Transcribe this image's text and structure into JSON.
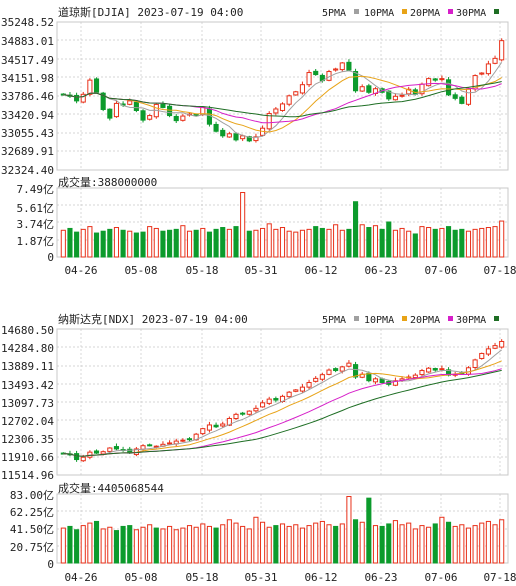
{
  "ma_labels": [
    "5PMA",
    "10PMA",
    "20PMA",
    "30PMA"
  ],
  "colors": {
    "up": "#e8311a",
    "down": "#0c9b2c",
    "ma5": "#a0a0a0",
    "ma10": "#d4d4d4",
    "ma20": "#e8a317",
    "ma30": "#d61fc9",
    "ma60": "#1e6e24",
    "grid": "#c8c8c8",
    "text": "#222222"
  },
  "chart_data": [
    {
      "type": "candlestick",
      "title": "道琼斯[DJIA] 2023-07-19 04:00",
      "y_ticks": [
        "35248.52",
        "34883.01",
        "34517.49",
        "34151.98",
        "33786.46",
        "33420.94",
        "33055.43",
        "32689.91",
        "32324.40"
      ],
      "ylim": [
        32324.4,
        35248.52
      ],
      "x_ticks": [
        "04-26",
        "05-08",
        "05-18",
        "05-31",
        "06-12",
        "06-23",
        "07-06",
        "07-18"
      ],
      "volume_label": "成交量:388000000",
      "volume_ticks": [
        "7.49亿",
        "5.61亿",
        "3.74亿",
        "1.87亿",
        "0"
      ],
      "volume_max": 7.49,
      "closes": [
        33810,
        33780,
        33690,
        33820,
        34100,
        33860,
        33520,
        33350,
        33640,
        33610,
        33690,
        33500,
        33310,
        33400,
        33620,
        33560,
        33400,
        33300,
        33390,
        33430,
        33410,
        33560,
        33230,
        33090,
        33000,
        33040,
        32920,
        33000,
        32900,
        32980,
        33150,
        33440,
        33530,
        33630,
        33790,
        33870,
        34010,
        34250,
        34210,
        34090,
        34270,
        34320,
        34440,
        34300,
        33890,
        33970,
        33860,
        33930,
        33860,
        33730,
        33780,
        33800,
        33920,
        33820,
        34020,
        34130,
        34100,
        34130,
        33810,
        33740,
        33640,
        33920,
        34190,
        34240,
        34420,
        34530,
        34880
      ],
      "volumes": [
        2.9,
        3.1,
        2.7,
        3.0,
        3.3,
        2.6,
        2.8,
        3.0,
        3.2,
        2.9,
        2.8,
        2.6,
        2.7,
        3.3,
        3.1,
        2.8,
        2.9,
        3.0,
        3.4,
        2.8,
        2.9,
        3.1,
        2.7,
        3.0,
        3.2,
        3.0,
        3.3,
        7.0,
        2.8,
        2.9,
        3.1,
        3.6,
        3.0,
        3.2,
        2.8,
        2.7,
        2.9,
        3.0,
        3.3,
        3.1,
        3.0,
        3.5,
        2.9,
        3.0,
        6.0,
        3.5,
        3.2,
        3.4,
        3.0,
        3.8,
        2.9,
        3.1,
        2.8,
        2.5,
        3.3,
        3.2,
        3.0,
        3.1,
        3.3,
        2.9,
        3.0,
        2.8,
        3.0,
        3.1,
        3.2,
        3.3,
        3.9
      ]
    },
    {
      "type": "candlestick",
      "title": "纳斯达克[NDX] 2023-07-19 04:00",
      "y_ticks": [
        "14680.50",
        "14284.80",
        "13889.11",
        "13493.42",
        "13097.73",
        "12702.04",
        "12306.35",
        "11910.66",
        "11514.96"
      ],
      "ylim": [
        11514.96,
        14680.5
      ],
      "x_ticks": [
        "04-26",
        "05-08",
        "05-18",
        "05-31",
        "06-12",
        "06-23",
        "07-06",
        "07-18"
      ],
      "volume_label": "成交量:4405068544",
      "volume_ticks": [
        "83.00亿",
        "62.25亿",
        "41.50亿",
        "20.75亿",
        "0"
      ],
      "volume_max": 83.0,
      "closes": [
        11980,
        11960,
        11850,
        11900,
        12010,
        11990,
        12020,
        12100,
        12080,
        12060,
        11990,
        12080,
        12150,
        12160,
        12140,
        12180,
        12210,
        12250,
        12270,
        12290,
        12400,
        12520,
        12600,
        12560,
        12620,
        12740,
        12830,
        12850,
        12900,
        12960,
        13080,
        13160,
        13140,
        13220,
        13310,
        13360,
        13420,
        13520,
        13610,
        13690,
        13790,
        13780,
        13860,
        13940,
        13640,
        13700,
        13560,
        13600,
        13520,
        13480,
        13560,
        13600,
        13640,
        13680,
        13780,
        13830,
        13790,
        13820,
        13680,
        13700,
        13720,
        13840,
        14010,
        14150,
        14250,
        14320,
        14410
      ],
      "volumes": [
        42,
        44,
        40,
        45,
        48,
        50,
        41,
        43,
        39,
        44,
        45,
        40,
        43,
        46,
        42,
        41,
        44,
        40,
        42,
        45,
        43,
        47,
        44,
        42,
        46,
        52,
        48,
        44,
        41,
        55,
        49,
        43,
        45,
        47,
        44,
        46,
        42,
        45,
        48,
        50,
        46,
        44,
        47,
        80,
        52,
        49,
        78,
        45,
        44,
        47,
        51,
        46,
        48,
        41,
        45,
        43,
        47,
        55,
        49,
        44,
        46,
        42,
        45,
        48,
        50,
        46,
        52
      ]
    }
  ]
}
